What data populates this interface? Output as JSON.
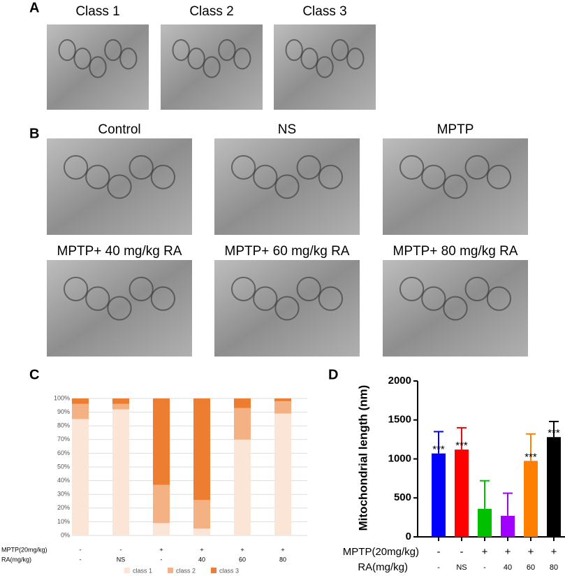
{
  "panel_labels": [
    "A",
    "B",
    "C",
    "D"
  ],
  "panel_a": {
    "images": [
      "Class 1",
      "Class 2",
      "Class 3"
    ]
  },
  "panel_b": {
    "images": [
      "Control",
      "NS",
      "MPTP",
      "MPTP+ 40 mg/kg RA",
      "MPTP+ 60 mg/kg RA",
      "MPTP+ 80 mg/kg RA"
    ]
  },
  "chart_data": [
    {
      "type": "stacked_bar",
      "categories": [
        null,
        null,
        null,
        null,
        null,
        null
      ],
      "series": [
        {
          "name": "class 1",
          "color": "#fbe5d6",
          "values": [
            85,
            92,
            9,
            5,
            70,
            89
          ]
        },
        {
          "name": "class 2",
          "color": "#f4b183",
          "values": [
            11,
            4,
            28,
            21,
            23,
            9
          ]
        },
        {
          "name": "class 3",
          "color": "#ed7d31",
          "values": [
            4,
            4,
            63,
            74,
            7,
            2
          ]
        }
      ],
      "ylim": [
        0,
        100
      ],
      "yticks": [
        {
          "value": 0,
          "label": "0%"
        },
        {
          "value": 10,
          "label": "10%"
        },
        {
          "value": 20,
          "label": "20%"
        },
        {
          "value": 30,
          "label": "30%"
        },
        {
          "value": 40,
          "label": "40%"
        },
        {
          "value": 50,
          "label": "50%"
        },
        {
          "value": 60,
          "label": "60%"
        },
        {
          "value": 70,
          "label": "70%"
        },
        {
          "value": 80,
          "label": "80%"
        },
        {
          "value": 90,
          "label": "90%"
        },
        {
          "value": 100,
          "label": "100%"
        }
      ],
      "grid": true,
      "legend": "bottom",
      "row_labels": [
        {
          "name": "MPTP(20mg/kg)",
          "values": [
            "-",
            "-",
            "+",
            "+",
            "+",
            "+"
          ]
        },
        {
          "name": "RA(mg/kg)",
          "values": [
            "-",
            "NS",
            "-",
            "40",
            "60",
            "80"
          ]
        }
      ]
    },
    {
      "type": "bar",
      "y_label": "Mitochondrial length (nm)",
      "categories": [
        null,
        null,
        null,
        null,
        null,
        null
      ],
      "values": [
        1070,
        1120,
        360,
        270,
        975,
        1280
      ],
      "errors": [
        280,
        280,
        360,
        290,
        345,
        200
      ],
      "colors": [
        "#0000ff",
        "#ff0000",
        "#00c000",
        "#a000ff",
        "#ff8000",
        "#000000"
      ],
      "significance": [
        "***",
        "***",
        null,
        null,
        "***",
        "***"
      ],
      "ylim": [
        0,
        2000
      ],
      "yticks": [
        0,
        500,
        1000,
        1500,
        2000
      ],
      "grid": false,
      "row_labels": [
        {
          "name": "MPTP(20mg/kg)",
          "values": [
            "-",
            "-",
            "+",
            "+",
            "+",
            "+"
          ]
        },
        {
          "name": "RA(mg/kg)",
          "values": [
            "-",
            "NS",
            "-",
            "40",
            "60",
            "80"
          ]
        }
      ]
    }
  ]
}
